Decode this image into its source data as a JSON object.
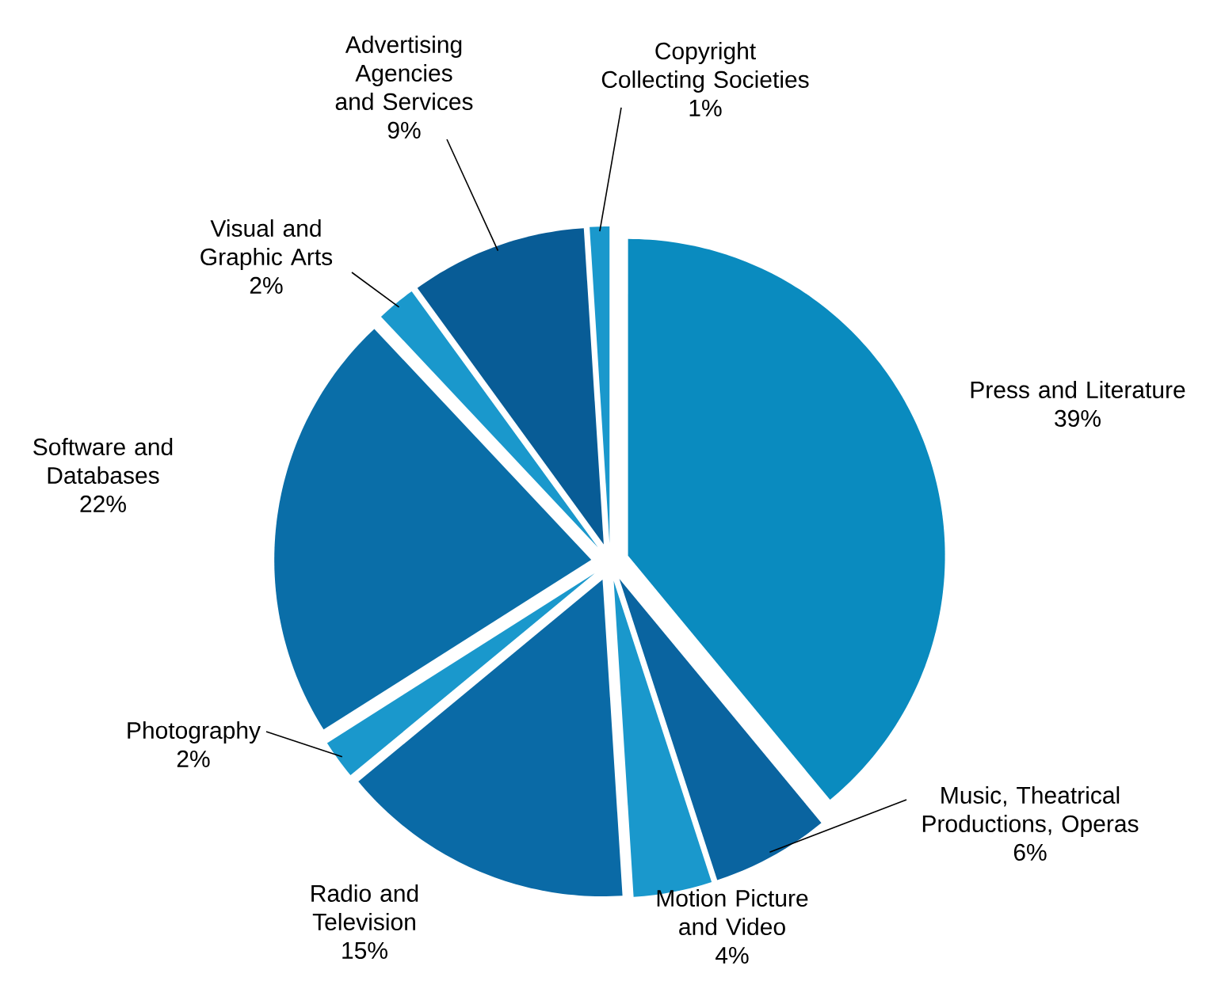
{
  "chart_data": {
    "type": "pie",
    "categories": [
      "Press and Literature",
      "Music, Theatrical Productions, Operas",
      "Motion Picture and Video",
      "Radio and Television",
      "Photography",
      "Software and Databases",
      "Visual and Graphic Arts",
      "Advertising Agencies and Services",
      "Copyright Collecting Societies"
    ],
    "values": [
      39,
      6,
      4,
      15,
      2,
      22,
      2,
      9,
      1
    ],
    "value_labels": [
      "39%",
      "6%",
      "4%",
      "15%",
      "2%",
      "22%",
      "2%",
      "9%",
      "1%"
    ],
    "colors": [
      "#0a8bbf",
      "#0a64a0",
      "#1a98cc",
      "#0a6aa6",
      "#1a98cc",
      "#0a6ea8",
      "#1a98cc",
      "#085c96",
      "#1a98cc"
    ]
  }
}
